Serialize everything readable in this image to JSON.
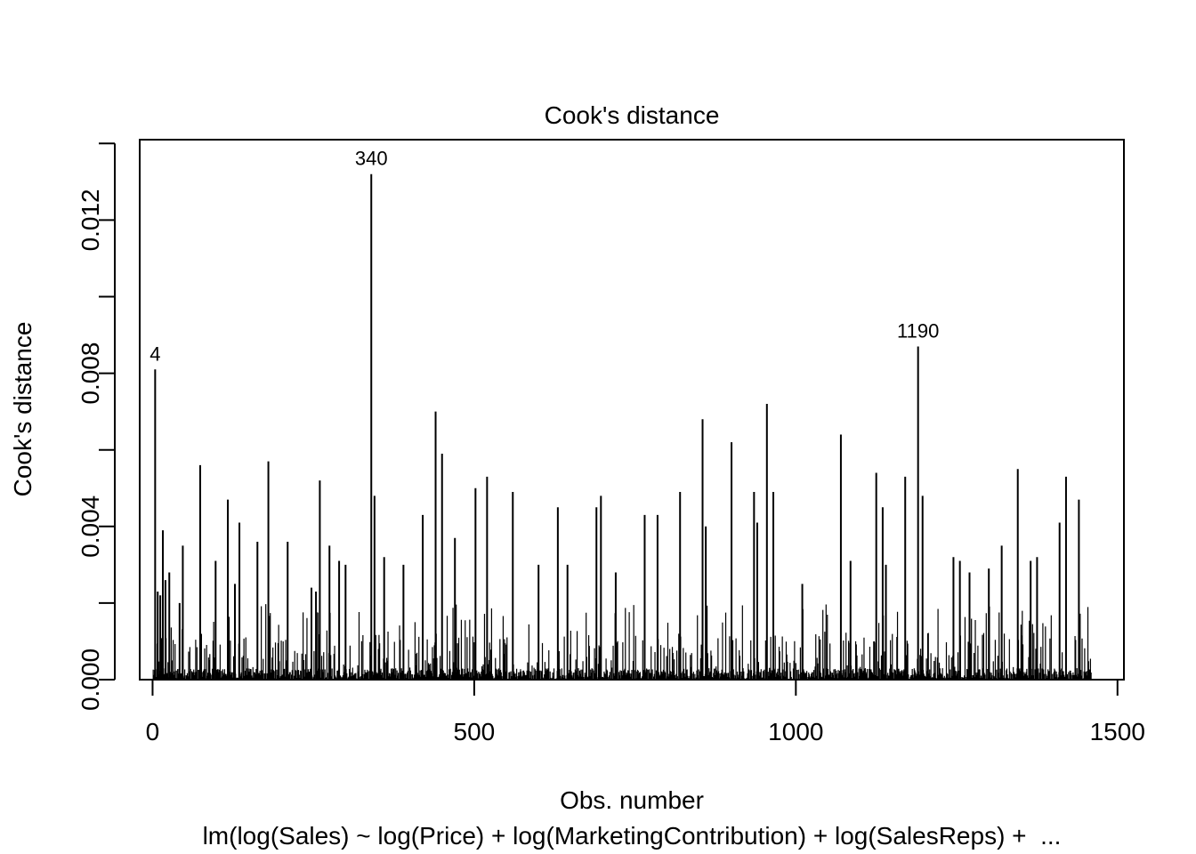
{
  "chart_data": {
    "type": "bar",
    "title": "Cook's distance",
    "xlabel": "Obs. number",
    "ylabel": "Cook's distance",
    "caption": "lm(log(Sales) ~ log(Price) + log(MarketingContribution) + log(SalesReps) +  ...",
    "xlim": [
      -20,
      1510
    ],
    "ylim": [
      0,
      0.0141
    ],
    "x_ticks": [
      0,
      500,
      1000,
      1500
    ],
    "x_tick_labels": [
      "0",
      "500",
      "1000",
      "1500"
    ],
    "y_ticks": [
      0,
      0.002,
      0.004,
      0.006,
      0.008,
      0.01,
      0.012,
      0.014
    ],
    "y_tick_labels": [
      "0.000",
      "",
      "0.004",
      "",
      "0.008",
      "",
      "0.012",
      ""
    ],
    "n_observations": 1459,
    "grid": false,
    "legend": "none",
    "labeled_points": [
      {
        "label": "4",
        "x": 4,
        "y": 0.0081
      },
      {
        "label": "340",
        "x": 340,
        "y": 0.0132
      },
      {
        "label": "1190",
        "x": 1190,
        "y": 0.0087
      }
    ],
    "spikes": [
      {
        "x": 4,
        "y": 0.0081
      },
      {
        "x": 8,
        "y": 0.0023
      },
      {
        "x": 12,
        "y": 0.0022
      },
      {
        "x": 16,
        "y": 0.0039
      },
      {
        "x": 20,
        "y": 0.0026
      },
      {
        "x": 26,
        "y": 0.0028
      },
      {
        "x": 42,
        "y": 0.002
      },
      {
        "x": 47,
        "y": 0.0035
      },
      {
        "x": 74,
        "y": 0.0056
      },
      {
        "x": 98,
        "y": 0.0031
      },
      {
        "x": 117,
        "y": 0.0047
      },
      {
        "x": 128,
        "y": 0.0025
      },
      {
        "x": 135,
        "y": 0.0041
      },
      {
        "x": 163,
        "y": 0.0036
      },
      {
        "x": 180,
        "y": 0.0057
      },
      {
        "x": 210,
        "y": 0.0036
      },
      {
        "x": 247,
        "y": 0.0024
      },
      {
        "x": 254,
        "y": 0.0023
      },
      {
        "x": 260,
        "y": 0.0052
      },
      {
        "x": 275,
        "y": 0.0035
      },
      {
        "x": 290,
        "y": 0.0031
      },
      {
        "x": 300,
        "y": 0.003
      },
      {
        "x": 340,
        "y": 0.0132
      },
      {
        "x": 345,
        "y": 0.0048
      },
      {
        "x": 360,
        "y": 0.0032
      },
      {
        "x": 390,
        "y": 0.003
      },
      {
        "x": 420,
        "y": 0.0043
      },
      {
        "x": 440,
        "y": 0.007
      },
      {
        "x": 450,
        "y": 0.0059
      },
      {
        "x": 470,
        "y": 0.0037
      },
      {
        "x": 502,
        "y": 0.005
      },
      {
        "x": 520,
        "y": 0.0053
      },
      {
        "x": 560,
        "y": 0.0049
      },
      {
        "x": 600,
        "y": 0.003
      },
      {
        "x": 630,
        "y": 0.0045
      },
      {
        "x": 645,
        "y": 0.003
      },
      {
        "x": 690,
        "y": 0.0045
      },
      {
        "x": 697,
        "y": 0.0048
      },
      {
        "x": 720,
        "y": 0.0028
      },
      {
        "x": 765,
        "y": 0.0043
      },
      {
        "x": 785,
        "y": 0.0043
      },
      {
        "x": 820,
        "y": 0.0049
      },
      {
        "x": 855,
        "y": 0.0068
      },
      {
        "x": 860,
        "y": 0.004
      },
      {
        "x": 900,
        "y": 0.0062
      },
      {
        "x": 935,
        "y": 0.0049
      },
      {
        "x": 940,
        "y": 0.0041
      },
      {
        "x": 955,
        "y": 0.0072
      },
      {
        "x": 965,
        "y": 0.0049
      },
      {
        "x": 1010,
        "y": 0.0025
      },
      {
        "x": 1070,
        "y": 0.0064
      },
      {
        "x": 1085,
        "y": 0.0031
      },
      {
        "x": 1125,
        "y": 0.0054
      },
      {
        "x": 1135,
        "y": 0.0045
      },
      {
        "x": 1140,
        "y": 0.003
      },
      {
        "x": 1170,
        "y": 0.0053
      },
      {
        "x": 1190,
        "y": 0.0087
      },
      {
        "x": 1197,
        "y": 0.0048
      },
      {
        "x": 1245,
        "y": 0.0032
      },
      {
        "x": 1255,
        "y": 0.0031
      },
      {
        "x": 1270,
        "y": 0.0028
      },
      {
        "x": 1300,
        "y": 0.0029
      },
      {
        "x": 1320,
        "y": 0.0035
      },
      {
        "x": 1345,
        "y": 0.0055
      },
      {
        "x": 1365,
        "y": 0.0031
      },
      {
        "x": 1375,
        "y": 0.0032
      },
      {
        "x": 1410,
        "y": 0.0041
      },
      {
        "x": 1420,
        "y": 0.0053
      },
      {
        "x": 1440,
        "y": 0.0047
      }
    ],
    "baseline_noise_max": 0.002
  }
}
